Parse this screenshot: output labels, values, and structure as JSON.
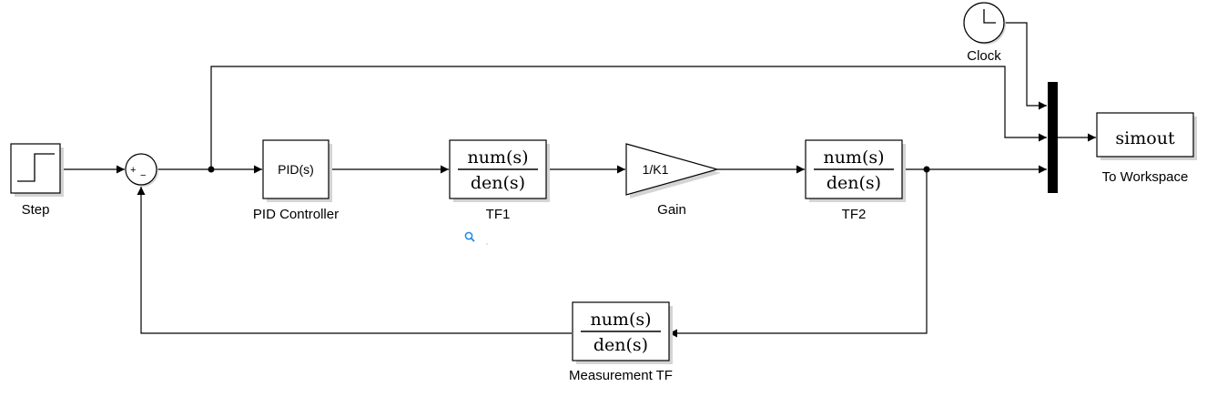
{
  "blocks": {
    "step": {
      "label": "Step"
    },
    "sum": {
      "plus": "+",
      "minus": "−"
    },
    "pid": {
      "label": "PID Controller",
      "text": "PID(s)"
    },
    "tf1": {
      "label": "TF1",
      "num": "num(s)",
      "den": "den(s)"
    },
    "gain": {
      "label": "Gain",
      "text": "1/K1"
    },
    "tf2": {
      "label": "TF2",
      "num": "num(s)",
      "den": "den(s)"
    },
    "measurement": {
      "label": "Measurement TF",
      "num": "num(s)",
      "den": "den(s)"
    },
    "clock": {
      "label": "Clock"
    },
    "workspace": {
      "label": "To Workspace",
      "text": "simout"
    }
  },
  "icons": {
    "zoom": "magnifier-icon"
  },
  "colors": {
    "zoom_icon": "#1e88e5"
  }
}
